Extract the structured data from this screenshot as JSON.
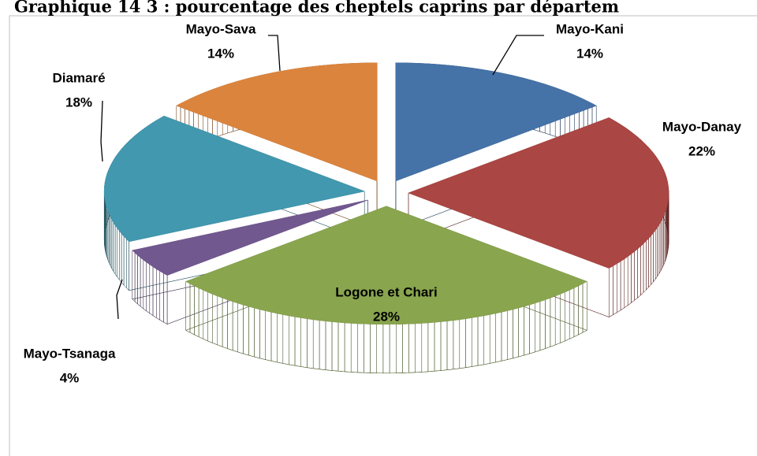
{
  "chart_data": {
    "type": "pie3d",
    "title": "Graphique 14 3 : pourcentage des cheptels caprins par départem",
    "categories": [
      "Mayo-Kani",
      "Mayo-Danay",
      "Logone et Chari",
      "Mayo-Tsanaga",
      "Diamaré",
      "Mayo-Sava"
    ],
    "values": [
      14,
      22,
      28,
      4,
      18,
      14
    ],
    "value_labels": [
      "14%",
      "22%",
      "28%",
      "4%",
      "18%",
      "14%"
    ],
    "colors": [
      "#4572a7",
      "#aa4643",
      "#89a54e",
      "#71588f",
      "#4198af",
      "#db843d"
    ]
  }
}
